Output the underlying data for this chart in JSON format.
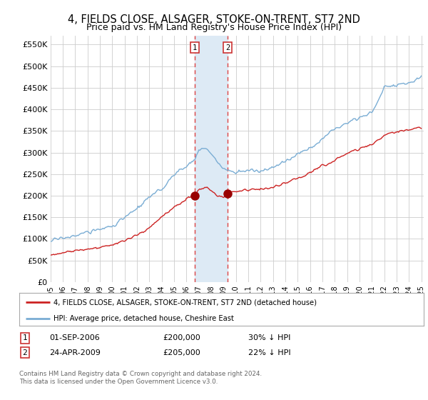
{
  "title": "4, FIELDS CLOSE, ALSAGER, STOKE-ON-TRENT, ST7 2ND",
  "subtitle": "Price paid vs. HM Land Registry's House Price Index (HPI)",
  "title_fontsize": 10.5,
  "subtitle_fontsize": 9.0,
  "ylabel_ticks": [
    "£0",
    "£50K",
    "£100K",
    "£150K",
    "£200K",
    "£250K",
    "£300K",
    "£350K",
    "£400K",
    "£450K",
    "£500K",
    "£550K"
  ],
  "ytick_values": [
    0,
    50000,
    100000,
    150000,
    200000,
    250000,
    300000,
    350000,
    400000,
    450000,
    500000,
    550000
  ],
  "ylim": [
    0,
    570000
  ],
  "xlim_start": 1995.0,
  "xlim_end": 2025.2,
  "xtick_years": [
    1995,
    1996,
    1997,
    1998,
    1999,
    2000,
    2001,
    2002,
    2003,
    2004,
    2005,
    2006,
    2007,
    2008,
    2009,
    2010,
    2011,
    2012,
    2013,
    2014,
    2015,
    2016,
    2017,
    2018,
    2019,
    2020,
    2021,
    2022,
    2023,
    2024,
    2025
  ],
  "hpi_color": "#7aadd4",
  "sale_color": "#cc2222",
  "marker_color": "#990000",
  "sale1_x": 2006.67,
  "sale1_y": 200000,
  "sale2_x": 2009.32,
  "sale2_y": 205000,
  "sale1_label": "1",
  "sale2_label": "2",
  "legend_sale": "4, FIELDS CLOSE, ALSAGER, STOKE-ON-TRENT, ST7 2ND (detached house)",
  "legend_hpi": "HPI: Average price, detached house, Cheshire East",
  "footer1": "Contains HM Land Registry data © Crown copyright and database right 2024.",
  "footer2": "This data is licensed under the Open Government Licence v3.0.",
  "table_row1": [
    "1",
    "01-SEP-2006",
    "£200,000",
    "30% ↓ HPI"
  ],
  "table_row2": [
    "2",
    "24-APR-2009",
    "£205,000",
    "22% ↓ HPI"
  ],
  "bg_color": "#ffffff",
  "grid_color": "#cccccc",
  "shade_color": "#ddeaf5",
  "dash_color": "#dd4444",
  "hpi_anchors_x": [
    1995,
    1996,
    1997,
    1998,
    1999,
    2000,
    2001,
    2002,
    2003,
    2004,
    2005,
    2006,
    2006.67,
    2007,
    2007.5,
    2008,
    2008.5,
    2009,
    2009.32,
    2010,
    2011,
    2012,
    2013,
    2014,
    2015,
    2016,
    2017,
    2018,
    2019,
    2020,
    2021,
    2022,
    2023,
    2024,
    2025
  ],
  "hpi_anchors_y": [
    95000,
    102000,
    108000,
    115000,
    122000,
    130000,
    148000,
    170000,
    195000,
    215000,
    248000,
    268000,
    285000,
    305000,
    310000,
    295000,
    278000,
    262000,
    258000,
    255000,
    258000,
    255000,
    265000,
    278000,
    295000,
    310000,
    330000,
    355000,
    370000,
    380000,
    390000,
    450000,
    455000,
    460000,
    475000
  ],
  "sale_anchors_x": [
    1995,
    1996,
    1997,
    1998,
    1999,
    2000,
    2001,
    2002,
    2003,
    2004,
    2005,
    2006,
    2006.67,
    2007,
    2007.5,
    2008,
    2008.5,
    2009,
    2009.32,
    2010,
    2011,
    2012,
    2013,
    2014,
    2015,
    2016,
    2017,
    2018,
    2019,
    2020,
    2021,
    2022,
    2023,
    2024,
    2025
  ],
  "sale_anchors_y": [
    63000,
    67000,
    72000,
    76000,
    80000,
    86000,
    95000,
    108000,
    125000,
    150000,
    172000,
    192000,
    200000,
    212000,
    218000,
    210000,
    198000,
    195000,
    205000,
    208000,
    212000,
    215000,
    218000,
    228000,
    240000,
    252000,
    268000,
    282000,
    298000,
    308000,
    318000,
    340000,
    348000,
    352000,
    358000
  ]
}
